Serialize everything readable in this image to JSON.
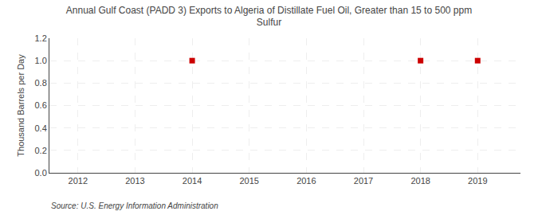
{
  "chart_data": {
    "type": "scatter",
    "title": "Annual Gulf Coast (PADD 3) Exports to Algeria of Distillate Fuel Oil, Greater than 15 to 500 ppm\nSulfur",
    "y_label": "Thousand Barrels per Day",
    "annotation": "Source: U.S. Energy Information Administration",
    "x": [
      2014,
      2018,
      2019
    ],
    "values": [
      1.0,
      1.0,
      1.0
    ],
    "color": "#cc0000",
    "marker": "square",
    "line_style": "none",
    "xlim": [
      2011.5,
      2019.75
    ],
    "ylim": [
      0.0,
      1.2
    ],
    "xticks": [
      2012,
      2013,
      2014,
      2015,
      2016,
      2017,
      2018,
      2019
    ],
    "yticks": [
      {
        "value": 0,
        "label": "0.0"
      },
      0.2,
      0.4,
      0.6,
      0.8,
      {
        "value": 1,
        "label": "1.0"
      },
      1.2
    ],
    "grid": true
  }
}
